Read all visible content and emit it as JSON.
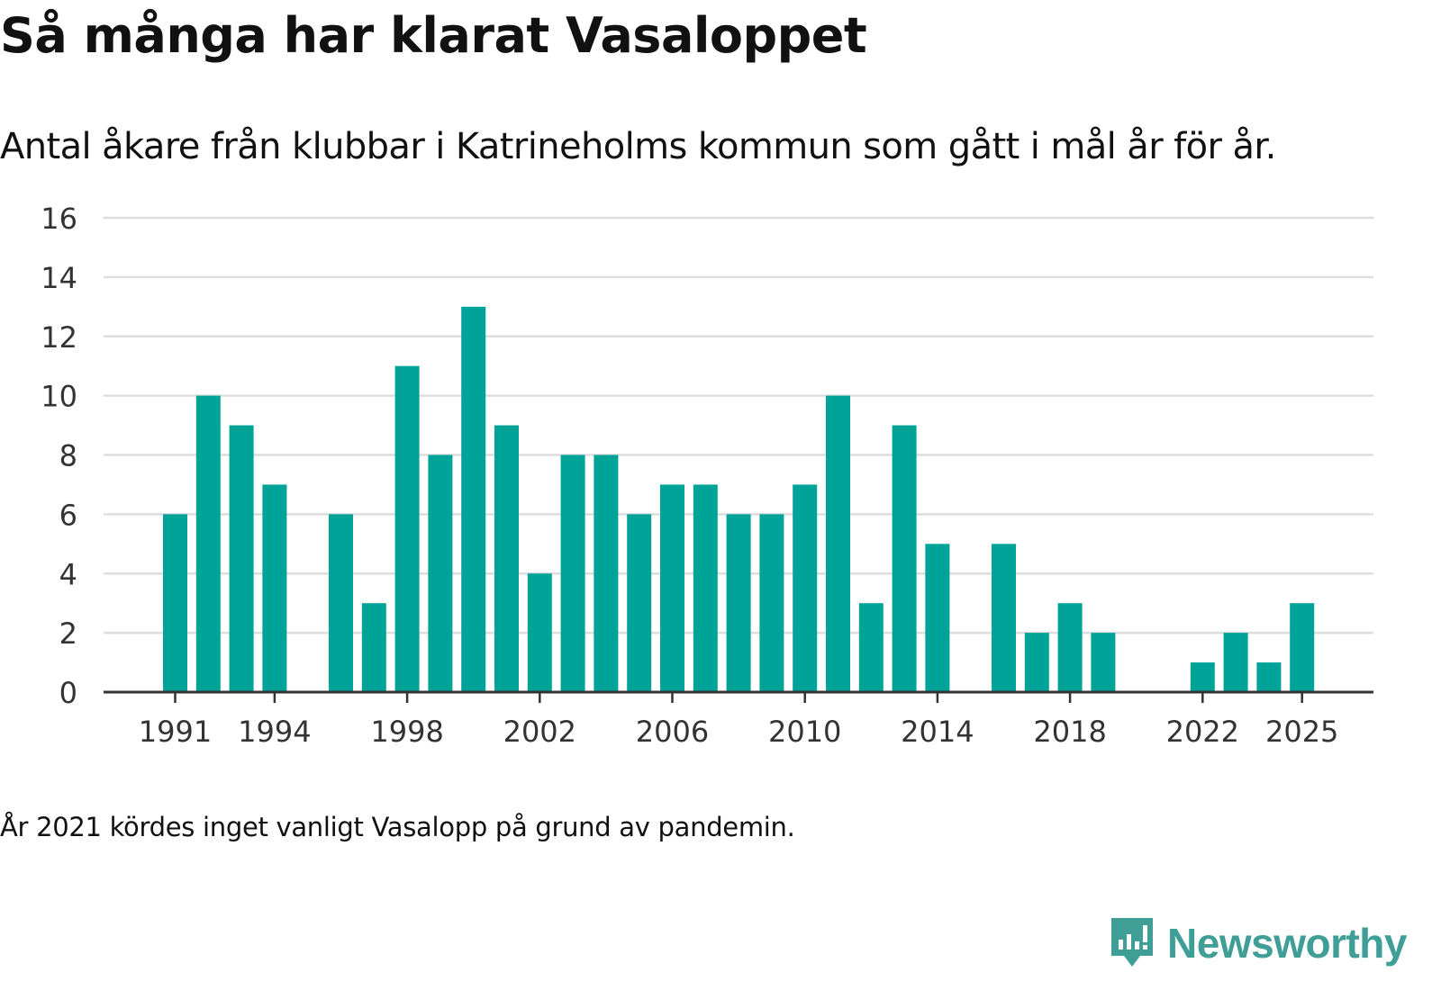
{
  "title": "Så många har klarat Vasaloppet",
  "subtitle": "Antal åkare från klubbar i Katrineholms kommun som gått i mål år för år.",
  "note": "År 2021 kördes inget vanligt Vasalopp på grund av pandemin.",
  "brand": {
    "name": "Newsworthy",
    "icon": "newsworthy-logo-icon"
  },
  "colors": {
    "bar": "#00a398",
    "grid": "#dddddd",
    "axis": "#333333",
    "brand": "#3f9e96"
  },
  "chart_data": {
    "type": "bar",
    "title": "Så många har klarat Vasaloppet",
    "xlabel": "",
    "ylabel": "",
    "ylim": [
      0,
      16
    ],
    "yticks": [
      0,
      2,
      4,
      6,
      8,
      10,
      12,
      14,
      16
    ],
    "xtick_labels": [
      "1991",
      "1994",
      "1998",
      "2002",
      "2006",
      "2010",
      "2014",
      "2018",
      "2022",
      "2025"
    ],
    "categories": [
      1991,
      1992,
      1993,
      1994,
      1995,
      1996,
      1997,
      1998,
      1999,
      2000,
      2001,
      2002,
      2003,
      2004,
      2005,
      2006,
      2007,
      2008,
      2009,
      2010,
      2011,
      2012,
      2013,
      2014,
      2015,
      2016,
      2017,
      2018,
      2019,
      2020,
      2021,
      2022,
      2023,
      2024,
      2025
    ],
    "values": [
      6,
      10,
      9,
      7,
      0,
      6,
      3,
      11,
      8,
      13,
      9,
      4,
      8,
      8,
      6,
      7,
      7,
      6,
      6,
      7,
      10,
      3,
      9,
      5,
      0,
      5,
      2,
      3,
      2,
      0,
      0,
      1,
      2,
      1,
      3
    ],
    "grid": true
  }
}
